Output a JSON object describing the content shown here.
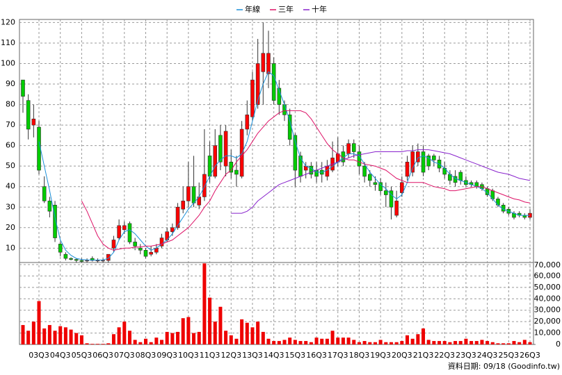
{
  "chart_data": {
    "type": "candlestick",
    "legend": "top",
    "grid": true,
    "up_color": "#ff0000",
    "down_color": "#00cc00",
    "categories": [
      null,
      null,
      null,
      "03Q3",
      null,
      null,
      null,
      "04Q3",
      null,
      null,
      null,
      "05Q3",
      null,
      null,
      null,
      "06Q3",
      null,
      null,
      null,
      "07Q3",
      null,
      null,
      null,
      "08Q3",
      null,
      null,
      null,
      "09Q3",
      null,
      null,
      null,
      "10Q3",
      null,
      null,
      null,
      "11Q3",
      null,
      null,
      null,
      "12Q3",
      null,
      null,
      null,
      "13Q3",
      null,
      null,
      null,
      "14Q3",
      null,
      null,
      null,
      "15Q3",
      null,
      null,
      null,
      "16Q3",
      null,
      null,
      null,
      "17Q3",
      null,
      null,
      null,
      "18Q3",
      null,
      null,
      null,
      "19Q3",
      null,
      null,
      null,
      "20Q3",
      null,
      null,
      null,
      "21Q3",
      null,
      null,
      null,
      "22Q3",
      null,
      null,
      null,
      "23Q3",
      null,
      null,
      null,
      "24Q3",
      null,
      null,
      null,
      "25Q3",
      null,
      null,
      null,
      "26Q3"
    ],
    "open": [
      92,
      82,
      70,
      69,
      40,
      33,
      31,
      12,
      7,
      5,
      4.5,
      4,
      4,
      5,
      4,
      4,
      4,
      10,
      15,
      19,
      22,
      13,
      10,
      9,
      7,
      8,
      11,
      14,
      18,
      20,
      29,
      33,
      40,
      31,
      35,
      55,
      45,
      65,
      50,
      52,
      48,
      45,
      68,
      74,
      80,
      96,
      95,
      100,
      88,
      80,
      75,
      65,
      55,
      48,
      50,
      48,
      48,
      45,
      48,
      52,
      57,
      56,
      61,
      57,
      50,
      46,
      42,
      42,
      38,
      38,
      26,
      37,
      45,
      47,
      52,
      57,
      55,
      55,
      53,
      49,
      46,
      45,
      47,
      43,
      42,
      42,
      41,
      39,
      38,
      34,
      31,
      29,
      27,
      27,
      26,
      25
    ],
    "high": [
      92,
      85,
      80,
      72,
      45,
      35,
      33,
      13,
      8,
      5.5,
      5,
      5,
      5,
      6,
      5,
      5,
      7,
      16,
      24,
      23,
      23,
      15,
      12,
      10,
      11,
      12,
      17,
      20,
      22,
      32,
      40,
      52,
      55,
      42,
      68,
      62,
      68,
      70,
      70,
      58,
      55,
      72,
      82,
      96,
      112,
      120,
      116,
      103,
      92,
      82,
      78,
      66,
      57,
      52,
      52,
      52,
      52,
      53,
      62,
      64,
      60,
      63,
      63,
      60,
      52,
      48,
      45,
      44,
      42,
      40,
      38,
      45,
      55,
      60,
      61,
      60,
      56,
      56,
      55,
      52,
      48,
      48,
      48,
      45,
      43,
      43,
      42,
      40,
      39,
      35,
      32,
      30,
      28,
      28,
      27,
      29
    ],
    "low": [
      76,
      63,
      64,
      46,
      32,
      25,
      13,
      6,
      4,
      4,
      3,
      3,
      3,
      3.5,
      3,
      3,
      3,
      8,
      14,
      17,
      12,
      9,
      7,
      5,
      6,
      7,
      10,
      13,
      16,
      19,
      27,
      30,
      30,
      29,
      33,
      42,
      44,
      48,
      45,
      44,
      40,
      44,
      65,
      72,
      78,
      80,
      88,
      80,
      75,
      72,
      60,
      40,
      42,
      44,
      44,
      42,
      42,
      43,
      47,
      50,
      50,
      54,
      54,
      46,
      42,
      40,
      38,
      36,
      30,
      24,
      25,
      35,
      43,
      45,
      50,
      45,
      48,
      50,
      47,
      44,
      41,
      40,
      41,
      40,
      40,
      39,
      38,
      35,
      33,
      30,
      27,
      26,
      24,
      25,
      24,
      24
    ],
    "close": [
      84,
      68,
      73,
      48,
      33,
      28,
      15,
      8,
      5,
      4.5,
      4,
      3.5,
      4,
      4,
      4,
      4,
      7,
      14,
      21,
      21,
      13,
      11,
      9,
      6,
      8,
      10,
      15,
      18,
      20,
      30,
      33,
      40,
      32,
      35,
      46,
      45,
      60,
      52,
      67,
      47,
      46,
      68,
      75,
      92,
      100,
      105,
      105,
      82,
      80,
      75,
      63,
      48,
      45,
      50,
      46,
      45,
      46,
      50,
      54,
      56,
      52,
      61,
      57,
      50,
      45,
      43,
      41,
      38,
      36,
      30,
      33,
      42,
      52,
      57,
      57,
      47,
      50,
      53,
      49,
      46,
      43,
      42,
      43,
      41,
      41,
      40,
      39,
      36,
      34,
      31,
      28,
      27,
      25,
      26,
      25,
      27
    ],
    "ylim": [
      3,
      121.5
    ],
    "yticks": [
      10,
      20,
      30,
      40,
      50,
      60,
      70,
      80,
      90,
      100,
      110,
      120
    ],
    "series": [
      {
        "name": "年線",
        "color": "#1a8fd8",
        "values": [
          null,
          null,
          null,
          62,
          50,
          38,
          25,
          14,
          9,
          6.5,
          5,
          4.5,
          4.3,
          4.2,
          4.2,
          4.3,
          5,
          8,
          14,
          18,
          19,
          17,
          14,
          11,
          9,
          10,
          12,
          14,
          17,
          21,
          25,
          29,
          32,
          35,
          40,
          45,
          50,
          53,
          55,
          55,
          54,
          56,
          62,
          72,
          82,
          90,
          96,
          94,
          87,
          80,
          72,
          62,
          54,
          50,
          49,
          47,
          47,
          48,
          50,
          52,
          54,
          56,
          56,
          55,
          51,
          47,
          44,
          41,
          39,
          36,
          34,
          36,
          42,
          49,
          54,
          55,
          54,
          52,
          51,
          49,
          46,
          44,
          43,
          42,
          41,
          40,
          39,
          37,
          34,
          31,
          29,
          28,
          27,
          26,
          26,
          26
        ]
      },
      {
        "name": "三年",
        "color": "#dd1166",
        "values": [
          null,
          null,
          null,
          null,
          null,
          null,
          null,
          null,
          null,
          null,
          null,
          33,
          28,
          22,
          16,
          12,
          10,
          9,
          9.5,
          10,
          10,
          10.5,
          10.5,
          11,
          11,
          11.5,
          12,
          13,
          14,
          16,
          18,
          20,
          23,
          26,
          30,
          33,
          38,
          42,
          46,
          48,
          52,
          55,
          58,
          62,
          66,
          69,
          72,
          74,
          76,
          77,
          77,
          77,
          77,
          76,
          73,
          69,
          65,
          61,
          58,
          56,
          54,
          53,
          53,
          52,
          51,
          50.5,
          50,
          49,
          48,
          46,
          44,
          43,
          42,
          42,
          42,
          42,
          41,
          40,
          39.5,
          39,
          38,
          38,
          38.5,
          39,
          39.5,
          40,
          40,
          39,
          38,
          37,
          36,
          35,
          34,
          33.5,
          32.5,
          32
        ]
      },
      {
        "name": "十年",
        "color": "#8822cc",
        "values": [
          null,
          null,
          null,
          null,
          null,
          null,
          null,
          null,
          null,
          null,
          null,
          null,
          null,
          null,
          null,
          null,
          null,
          null,
          null,
          null,
          null,
          null,
          null,
          null,
          null,
          null,
          null,
          null,
          null,
          null,
          null,
          null,
          null,
          null,
          null,
          null,
          null,
          null,
          null,
          27,
          27,
          27,
          28,
          30,
          33,
          35,
          37,
          39,
          41,
          42,
          43,
          44,
          45,
          46,
          47,
          48,
          49,
          50,
          51,
          52,
          53,
          54,
          55,
          55.5,
          56,
          56.5,
          57,
          57,
          57,
          57,
          57,
          57,
          57.5,
          57.5,
          58,
          58,
          58,
          57.5,
          57,
          56.5,
          56,
          55,
          54,
          53,
          52,
          51,
          50,
          49,
          48,
          47,
          46.5,
          46,
          45,
          44,
          43.5,
          43
        ]
      }
    ],
    "volume": {
      "color": "#ee0000",
      "values": [
        17000,
        12000,
        20000,
        38000,
        14000,
        17000,
        12000,
        16000,
        15000,
        13000,
        10000,
        8000,
        1000,
        500,
        500,
        500,
        1000,
        9000,
        15000,
        20000,
        12000,
        4000,
        2000,
        5000,
        2000,
        6000,
        4000,
        11000,
        10000,
        11000,
        23000,
        24000,
        10000,
        11000,
        71000,
        41000,
        20000,
        33000,
        12000,
        8000,
        5000,
        22000,
        19000,
        15000,
        20000,
        11000,
        5000,
        3000,
        3000,
        4000,
        6000,
        4000,
        3000,
        3000,
        2000,
        6000,
        5000,
        5000,
        12000,
        6000,
        6000,
        6000,
        4000,
        2000,
        3000,
        2000,
        2000,
        4000,
        2000,
        2000,
        2000,
        3000,
        8000,
        5000,
        9000,
        14000,
        4000,
        3000,
        3000,
        3000,
        2000,
        3000,
        3000,
        5000,
        3000,
        3000,
        4000,
        3000,
        2000,
        1000,
        1000,
        1000,
        3000,
        2000,
        4000,
        2000
      ],
      "ylim": [
        0,
        71800
      ],
      "yticks": [
        0,
        {
          "value": 10000,
          "label": "10,000"
        },
        {
          "value": 20000,
          "label": "20,000"
        },
        {
          "value": 30000,
          "label": "30,000"
        },
        {
          "value": 40000,
          "label": "40,000"
        },
        {
          "value": 50000,
          "label": "50,000"
        },
        {
          "value": 60000,
          "label": "60,000"
        },
        {
          "value": 70000,
          "label": "70,000"
        }
      ]
    },
    "source": "資料日期: 09/18  (Goodinfo.tw)"
  }
}
